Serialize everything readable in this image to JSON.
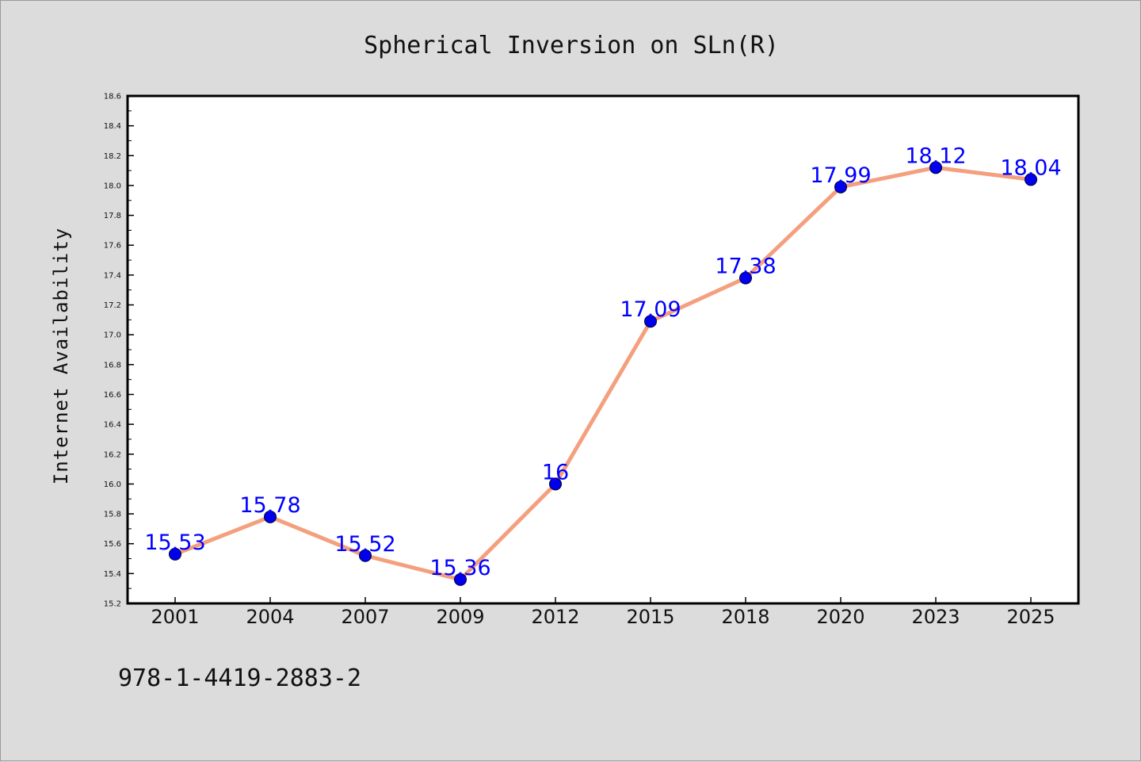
{
  "chart_data": {
    "type": "line",
    "title": "Spherical Inversion on SLn(R)",
    "xlabel": "",
    "ylabel": "Internet Availability",
    "categories": [
      "2001",
      "2004",
      "2007",
      "2009",
      "2012",
      "2015",
      "2018",
      "2020",
      "2023",
      "2025"
    ],
    "series": [
      {
        "values": [
          15.53,
          15.78,
          15.52,
          15.36,
          16,
          17.09,
          17.38,
          17.99,
          18.12,
          18.04
        ],
        "data_labels": [
          "15.53",
          "15.78",
          "15.52",
          "15.36",
          "16",
          "17.09",
          "17.38",
          "17.99",
          "18.12",
          "18.04"
        ],
        "line_color": "#f4a07e",
        "marker_color": "#0000ee",
        "marker_edge_color": "#000033",
        "label_color": "#0000ff"
      }
    ],
    "ylim": [
      15.2,
      18.6
    ],
    "yticks": [
      "15.2",
      "15.4",
      "15.6",
      "15.8",
      "16.0",
      "16.2",
      "16.4",
      "16.6",
      "16.8",
      "17.0",
      "17.2",
      "17.4",
      "17.6",
      "17.8",
      "18.0",
      "18.2",
      "18.4",
      "18.6"
    ],
    "grid": false,
    "legend": "none",
    "plot_background": "#ffffff",
    "figure_background": "#dcdcdc"
  },
  "footer": {
    "text": "978-1-4419-2883-2"
  }
}
